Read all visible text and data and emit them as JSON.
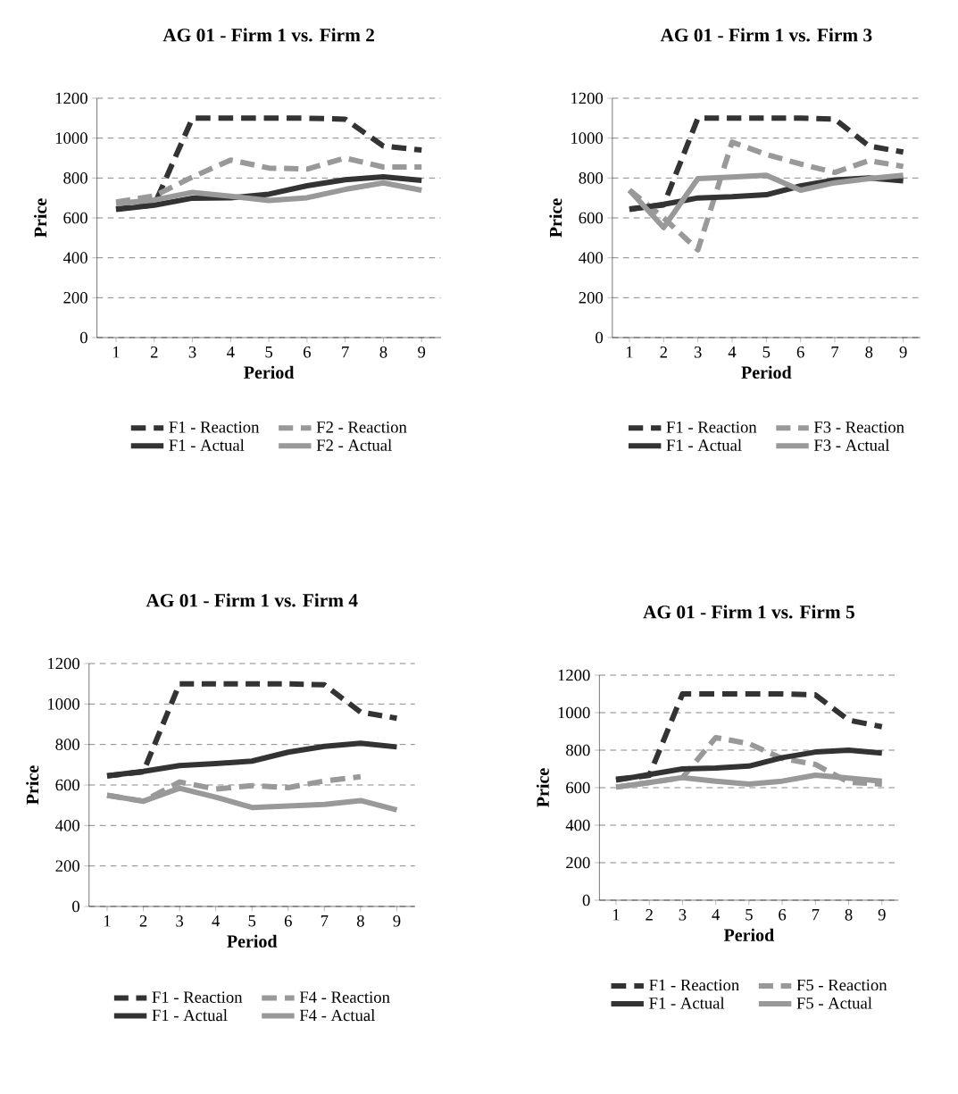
{
  "chart_data": [
    {
      "type": "line",
      "title": "AG 01 - Firm 1 vs. Firm 2",
      "xlabel": "Period",
      "ylabel": "Price",
      "categories": [
        "1",
        "2",
        "3",
        "4",
        "5",
        "6",
        "7",
        "8",
        "9"
      ],
      "ylim": [
        0,
        1200
      ],
      "yticks": [
        0,
        200,
        400,
        600,
        800,
        1000,
        1200
      ],
      "grid": "y",
      "legend": "bottom",
      "series": [
        {
          "name": "F1 - Reaction",
          "color": "#333333",
          "line_style": "dashed",
          "values": [
            645,
            665,
            1100,
            1100,
            1100,
            1100,
            1095,
            960,
            940
          ]
        },
        {
          "name": "F2 - Reaction",
          "color": "#999999",
          "line_style": "dashed",
          "values": [
            680,
            710,
            805,
            890,
            850,
            845,
            900,
            855,
            855
          ]
        },
        {
          "name": "F1 - Actual",
          "color": "#333333",
          "line_style": "solid",
          "values": [
            642,
            664,
            699,
            701,
            719,
            761,
            791,
            806,
            788
          ]
        },
        {
          "name": "F2 - Actual",
          "color": "#999999",
          "line_style": "solid",
          "values": [
            672,
            690,
            728,
            709,
            687,
            701,
            743,
            776,
            739
          ]
        }
      ]
    },
    {
      "type": "line",
      "title": "AG 01 - Firm 1 vs. Firm 3",
      "xlabel": "Period",
      "ylabel": "Price",
      "categories": [
        "1",
        "2",
        "3",
        "4",
        "5",
        "6",
        "7",
        "8",
        "9"
      ],
      "ylim": [
        0,
        1200
      ],
      "yticks": [
        0,
        200,
        400,
        600,
        800,
        1000,
        1200
      ],
      "grid": "y",
      "legend": "bottom",
      "series": [
        {
          "name": "F1 - Reaction",
          "color": "#333333",
          "line_style": "dashed",
          "values": [
            645,
            665,
            1100,
            1100,
            1100,
            1100,
            1095,
            960,
            930
          ]
        },
        {
          "name": "F3 - Reaction",
          "color": "#999999",
          "line_style": "dashed",
          "values": [
            740,
            600,
            440,
            980,
            918,
            870,
            828,
            887,
            858
          ]
        },
        {
          "name": "F1 - Actual",
          "color": "#333333",
          "line_style": "solid",
          "values": [
            642,
            668,
            700,
            706,
            716,
            760,
            790,
            800,
            786
          ]
        },
        {
          "name": "F3 - Actual",
          "color": "#999999",
          "line_style": "solid",
          "values": [
            739,
            552,
            797,
            805,
            814,
            739,
            776,
            797,
            814
          ]
        }
      ]
    },
    {
      "type": "line",
      "title": "AG 01 - Firm 1 vs. Firm 4",
      "xlabel": "Period",
      "ylabel": "Price",
      "categories": [
        "1",
        "2",
        "3",
        "4",
        "5",
        "6",
        "7",
        "8",
        "9"
      ],
      "ylim": [
        0,
        1200
      ],
      "yticks": [
        0,
        200,
        400,
        600,
        800,
        1000,
        1200
      ],
      "grid": "y",
      "legend": "bottom",
      "series": [
        {
          "name": "F1 - Reaction",
          "color": "#333333",
          "line_style": "dashed",
          "values": [
            645,
            665,
            1100,
            1100,
            1100,
            1100,
            1095,
            960,
            930
          ]
        },
        {
          "name": "F4 - Reaction",
          "color": "#999999",
          "line_style": "dashed",
          "values": [
            549,
            520,
            615,
            580,
            597,
            587,
            620,
            641,
            null
          ]
        },
        {
          "name": "F1 - Actual",
          "color": "#333333",
          "line_style": "solid",
          "values": [
            645,
            667,
            696,
            706,
            718,
            762,
            791,
            806,
            788
          ]
        },
        {
          "name": "F4 - Actual",
          "color": "#999999",
          "line_style": "solid",
          "values": [
            549,
            520,
            584,
            540,
            489,
            496,
            504,
            523,
            477
          ]
        }
      ]
    },
    {
      "type": "line",
      "title": "AG 01 - Firm 1 vs. Firm 5",
      "xlabel": "Period",
      "ylabel": "Price",
      "categories": [
        "1",
        "2",
        "3",
        "4",
        "5",
        "6",
        "7",
        "8",
        "9"
      ],
      "ylim": [
        0,
        1200
      ],
      "yticks": [
        0,
        200,
        400,
        600,
        800,
        1000,
        1200
      ],
      "grid": "y",
      "legend": "bottom",
      "series": [
        {
          "name": "F1 - Reaction",
          "color": "#333333",
          "line_style": "dashed",
          "values": [
            645,
            665,
            1100,
            1100,
            1100,
            1100,
            1095,
            960,
            925
          ]
        },
        {
          "name": "F5 - Reaction",
          "color": "#999999",
          "line_style": "dashed",
          "values": [
            603,
            627,
            654,
            867,
            835,
            756,
            724,
            629,
            619
          ]
        },
        {
          "name": "F1 - Actual",
          "color": "#333333",
          "line_style": "solid",
          "values": [
            640,
            670,
            700,
            705,
            715,
            760,
            790,
            800,
            785
          ]
        },
        {
          "name": "F5 - Actual",
          "color": "#999999",
          "line_style": "solid",
          "values": [
            603,
            627,
            654,
            635,
            619,
            635,
            667,
            651,
            635
          ]
        }
      ]
    }
  ]
}
